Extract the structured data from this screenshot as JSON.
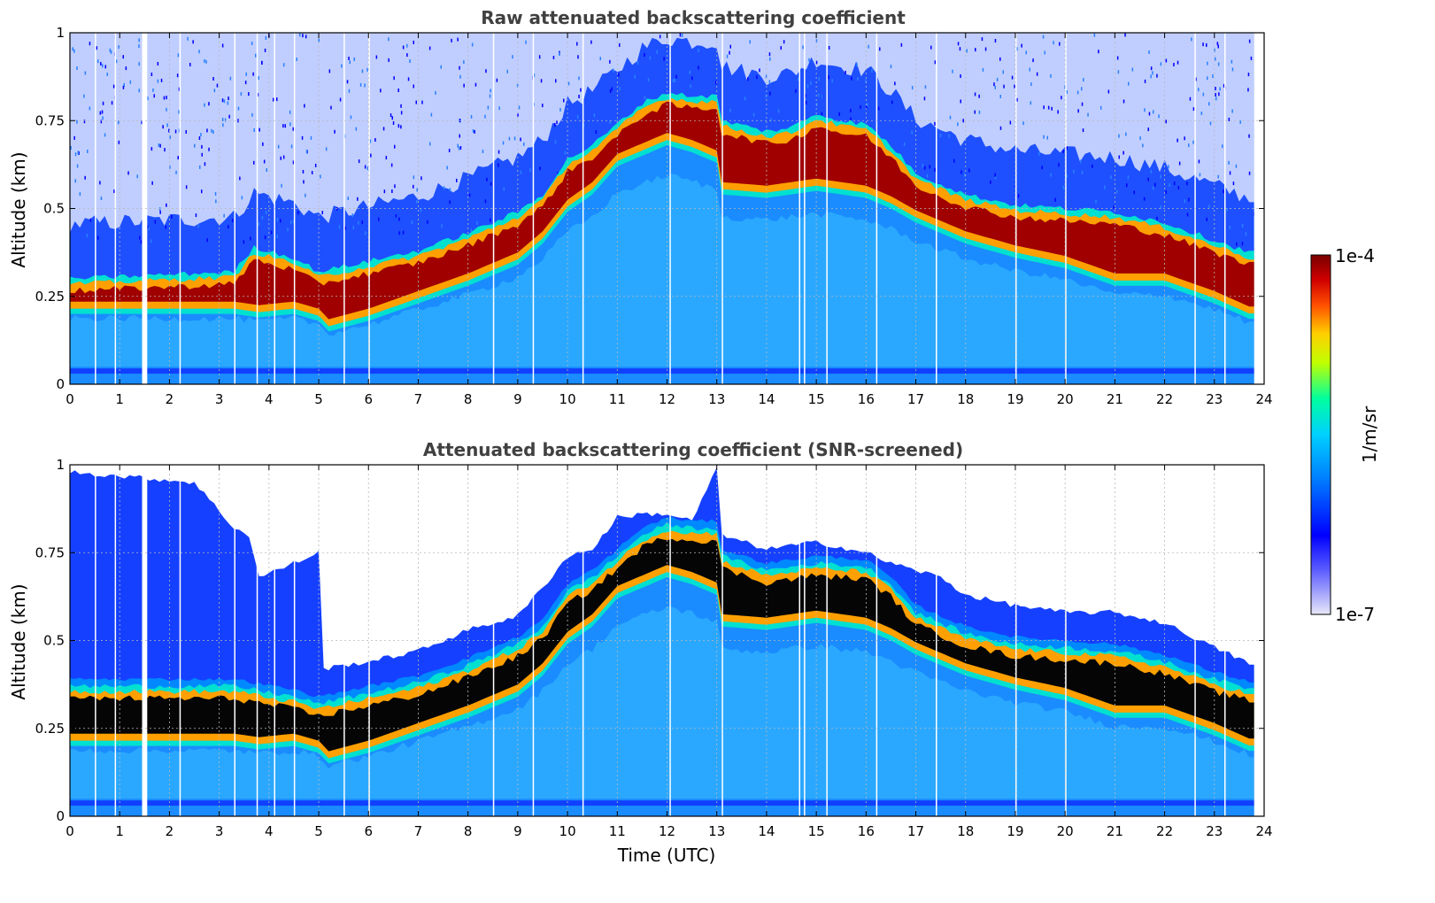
{
  "chart_data": [
    {
      "type": "heatmap",
      "title": "Raw attenuated backscattering coefficient",
      "xlabel": "",
      "ylabel": "Altitude (km)",
      "xlim": [
        0,
        24
      ],
      "ylim": [
        0,
        1
      ],
      "x_ticks": [
        "0",
        "1",
        "2",
        "3",
        "4",
        "5",
        "6",
        "7",
        "8",
        "9",
        "10",
        "11",
        "12",
        "13",
        "14",
        "15",
        "16",
        "17",
        "18",
        "19",
        "20",
        "21",
        "22",
        "23",
        "24"
      ],
      "y_ticks": [
        "0",
        "0.25",
        "0.5",
        "0.75",
        "1"
      ],
      "grid": true,
      "mode": "raw",
      "layer_top_km": [
        [
          0,
          0.28
        ],
        [
          3.3,
          0.3
        ],
        [
          3.7,
          0.37
        ],
        [
          4.5,
          0.34
        ],
        [
          5.0,
          0.3
        ],
        [
          6,
          0.33
        ],
        [
          7,
          0.36
        ],
        [
          8,
          0.41
        ],
        [
          9,
          0.47
        ],
        [
          9.5,
          0.52
        ],
        [
          10,
          0.62
        ],
        [
          10.5,
          0.66
        ],
        [
          11,
          0.72
        ],
        [
          11.5,
          0.78
        ],
        [
          12,
          0.81
        ],
        [
          12.5,
          0.8
        ],
        [
          13,
          0.8
        ],
        [
          13.1,
          0.73
        ],
        [
          14,
          0.7
        ],
        [
          14.5,
          0.71
        ],
        [
          15,
          0.75
        ],
        [
          15.5,
          0.73
        ],
        [
          16,
          0.72
        ],
        [
          16.5,
          0.66
        ],
        [
          17,
          0.58
        ],
        [
          18,
          0.52
        ],
        [
          19,
          0.49
        ],
        [
          20,
          0.48
        ],
        [
          21,
          0.47
        ],
        [
          22,
          0.44
        ],
        [
          23,
          0.39
        ],
        [
          23.8,
          0.35
        ]
      ],
      "layer_base_km": [
        [
          3.3,
          0.22
        ],
        [
          3.8,
          0.21
        ],
        [
          4.5,
          0.22
        ],
        [
          5.0,
          0.2
        ],
        [
          5.2,
          0.17
        ],
        [
          6,
          0.2
        ],
        [
          7,
          0.25
        ],
        [
          8,
          0.3
        ],
        [
          9,
          0.36
        ],
        [
          9.5,
          0.42
        ],
        [
          10,
          0.51
        ],
        [
          10.5,
          0.56
        ],
        [
          11,
          0.64
        ],
        [
          11.5,
          0.67
        ],
        [
          12,
          0.7
        ],
        [
          12.5,
          0.68
        ],
        [
          13,
          0.65
        ],
        [
          13.1,
          0.56
        ],
        [
          14,
          0.55
        ],
        [
          15,
          0.57
        ],
        [
          16,
          0.55
        ],
        [
          16.5,
          0.52
        ],
        [
          17,
          0.48
        ],
        [
          18,
          0.42
        ],
        [
          19,
          0.38
        ],
        [
          20,
          0.35
        ],
        [
          21,
          0.3
        ],
        [
          22,
          0.3
        ],
        [
          23,
          0.25
        ],
        [
          23.8,
          0.2
        ]
      ],
      "data_end_hour": 23.8,
      "gaps_hours": [
        0.5,
        0.9,
        1.45,
        1.5,
        2.2,
        3.3,
        3.75,
        4.1,
        4.5,
        5.5,
        6.0,
        8.5,
        9.3,
        10.3,
        12.05,
        13.1,
        14.65,
        14.75,
        15.2,
        16.2,
        17.4,
        19.0,
        20.0,
        22.6,
        23.2
      ]
    },
    {
      "type": "heatmap",
      "title": "Attenuated backscattering coefficient (SNR-screened)",
      "xlabel": "Time (UTC)",
      "ylabel": "Altitude (km)",
      "xlim": [
        0,
        24
      ],
      "ylim": [
        0,
        1
      ],
      "x_ticks": [
        "0",
        "1",
        "2",
        "3",
        "4",
        "5",
        "6",
        "7",
        "8",
        "9",
        "10",
        "11",
        "12",
        "13",
        "14",
        "15",
        "16",
        "17",
        "18",
        "19",
        "20",
        "21",
        "22",
        "23",
        "24"
      ],
      "y_ticks": [
        "0",
        "0.25",
        "0.5",
        "0.75",
        "1"
      ],
      "grid": true,
      "mode": "screened",
      "signal_top_km": [
        [
          0,
          0.98
        ],
        [
          2.5,
          0.95
        ],
        [
          3.3,
          0.82
        ],
        [
          3.6,
          0.8
        ],
        [
          3.8,
          0.68
        ],
        [
          4.5,
          0.72
        ],
        [
          5.0,
          0.75
        ],
        [
          5.1,
          0.42
        ],
        [
          6,
          0.44
        ],
        [
          7,
          0.47
        ],
        [
          8,
          0.53
        ],
        [
          9,
          0.57
        ],
        [
          9.5,
          0.65
        ],
        [
          10,
          0.74
        ],
        [
          10.5,
          0.76
        ],
        [
          11,
          0.85
        ],
        [
          11.5,
          0.86
        ],
        [
          12,
          0.86
        ],
        [
          12.5,
          0.84
        ],
        [
          13,
          0.99
        ],
        [
          13.1,
          0.8
        ],
        [
          14,
          0.76
        ],
        [
          14.5,
          0.77
        ],
        [
          15,
          0.78
        ],
        [
          16,
          0.75
        ],
        [
          16.5,
          0.72
        ],
        [
          17,
          0.7
        ],
        [
          17.5,
          0.68
        ],
        [
          18,
          0.63
        ],
        [
          19,
          0.6
        ],
        [
          20,
          0.58
        ],
        [
          21,
          0.58
        ],
        [
          22,
          0.55
        ],
        [
          23,
          0.48
        ],
        [
          23.8,
          0.43
        ]
      ],
      "layer_top_km": [
        [
          3.3,
          0.35
        ],
        [
          4.5,
          0.32
        ],
        [
          5.0,
          0.3
        ],
        [
          6,
          0.33
        ],
        [
          7,
          0.36
        ],
        [
          8,
          0.41
        ],
        [
          9,
          0.47
        ],
        [
          9.5,
          0.52
        ],
        [
          10,
          0.62
        ],
        [
          10.5,
          0.66
        ],
        [
          11,
          0.72
        ],
        [
          11.5,
          0.78
        ],
        [
          12,
          0.81
        ],
        [
          12.5,
          0.8
        ],
        [
          13,
          0.8
        ],
        [
          13.1,
          0.72
        ],
        [
          14,
          0.68
        ],
        [
          15,
          0.7
        ],
        [
          16,
          0.69
        ],
        [
          16.5,
          0.64
        ],
        [
          17,
          0.56
        ],
        [
          18,
          0.5
        ],
        [
          19,
          0.47
        ],
        [
          20,
          0.46
        ],
        [
          21,
          0.45
        ],
        [
          22,
          0.42
        ],
        [
          23,
          0.37
        ],
        [
          23.8,
          0.34
        ]
      ],
      "layer_base_km": [
        [
          3.3,
          0.22
        ],
        [
          3.8,
          0.21
        ],
        [
          4.5,
          0.22
        ],
        [
          5.0,
          0.2
        ],
        [
          5.2,
          0.17
        ],
        [
          6,
          0.2
        ],
        [
          7,
          0.25
        ],
        [
          8,
          0.3
        ],
        [
          9,
          0.36
        ],
        [
          9.5,
          0.42
        ],
        [
          10,
          0.51
        ],
        [
          10.5,
          0.56
        ],
        [
          11,
          0.64
        ],
        [
          11.5,
          0.67
        ],
        [
          12,
          0.7
        ],
        [
          12.5,
          0.68
        ],
        [
          13,
          0.65
        ],
        [
          13.1,
          0.56
        ],
        [
          14,
          0.55
        ],
        [
          15,
          0.57
        ],
        [
          16,
          0.55
        ],
        [
          16.5,
          0.52
        ],
        [
          17,
          0.48
        ],
        [
          18,
          0.42
        ],
        [
          19,
          0.38
        ],
        [
          20,
          0.35
        ],
        [
          21,
          0.3
        ],
        [
          22,
          0.3
        ],
        [
          23,
          0.25
        ],
        [
          23.8,
          0.2
        ]
      ],
      "data_end_hour": 23.8,
      "gaps_hours": [
        0.5,
        0.9,
        1.45,
        1.5,
        2.2,
        3.3,
        3.75,
        4.1,
        4.5,
        5.5,
        6.0,
        8.5,
        9.3,
        10.3,
        12.05,
        13.1,
        14.65,
        14.75,
        15.2,
        16.2,
        17.4,
        19.0,
        20.0,
        22.6,
        23.2
      ]
    }
  ],
  "colorbar": {
    "label": "1/m/sr",
    "max_label": "1e-4",
    "min_label": "1e-7",
    "scale": "log",
    "range": [
      1e-07,
      0.0001
    ],
    "colormap": [
      "#e8e8f8",
      "#0000ff",
      "#0064ff",
      "#00c8ff",
      "#00ffc8",
      "#ffff00",
      "#ff8000",
      "#ff0000",
      "#800000"
    ]
  }
}
